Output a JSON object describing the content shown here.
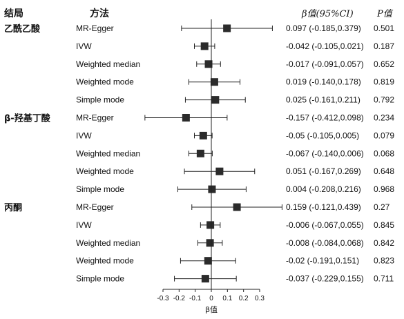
{
  "headers": {
    "outcome": "结局",
    "method": "方法",
    "beta_ci": "β值(95%CI)",
    "p": "P值"
  },
  "chart_data": {
    "type": "forest",
    "xlabel": "β值",
    "xlim": [
      -0.3,
      0.3
    ],
    "xticks": [
      "-0.3",
      "-0.2",
      "-0.1",
      "0",
      "0.1",
      "0.2",
      "0.3"
    ],
    "tick_values": [
      -0.3,
      -0.2,
      -0.1,
      0,
      0.1,
      0.2,
      0.3
    ],
    "groups": [
      {
        "outcome": "乙酰乙酸",
        "rows": [
          {
            "method": "MR-Egger",
            "beta": 0.097,
            "lower": -0.185,
            "upper": 0.379,
            "ci_text": "0.097  (-0.185,0.379)",
            "p": "0.501"
          },
          {
            "method": "IVW",
            "beta": -0.042,
            "lower": -0.105,
            "upper": 0.021,
            "ci_text": "-0.042  (-0.105,0.021)",
            "p": "0.187"
          },
          {
            "method": "Weighted median",
            "beta": -0.017,
            "lower": -0.091,
            "upper": 0.057,
            "ci_text": "-0.017  (-0.091,0.057)",
            "p": "0.652"
          },
          {
            "method": "Weighted mode",
            "beta": 0.019,
            "lower": -0.14,
            "upper": 0.178,
            "ci_text": "0.019  (-0.140,0.178)",
            "p": "0.819"
          },
          {
            "method": "Simple mode",
            "beta": 0.025,
            "lower": -0.161,
            "upper": 0.211,
            "ci_text": "0.025  (-0.161,0.211)",
            "p": "0.792"
          }
        ]
      },
      {
        "outcome": "β-羟基丁酸",
        "rows": [
          {
            "method": "MR-Egger",
            "beta": -0.157,
            "lower": -0.412,
            "upper": 0.098,
            "ci_text": "-0.157  (-0.412,0.098)",
            "p": "0.234"
          },
          {
            "method": "IVW",
            "beta": -0.05,
            "lower": -0.105,
            "upper": 0.005,
            "ci_text": "-0.05  (-0.105,0.005)",
            "p": "0.079"
          },
          {
            "method": "Weighted median",
            "beta": -0.067,
            "lower": -0.14,
            "upper": 0.006,
            "ci_text": "-0.067  (-0.140,0.006)",
            "p": "0.068"
          },
          {
            "method": "Weighted mode",
            "beta": 0.051,
            "lower": -0.167,
            "upper": 0.269,
            "ci_text": "0.051  (-0.167,0.269)",
            "p": "0.648"
          },
          {
            "method": "Simple mode",
            "beta": 0.004,
            "lower": -0.208,
            "upper": 0.216,
            "ci_text": "0.004  (-0.208,0.216)",
            "p": "0.968"
          }
        ]
      },
      {
        "outcome": "丙酮",
        "rows": [
          {
            "method": "MR-Egger",
            "beta": 0.159,
            "lower": -0.121,
            "upper": 0.439,
            "ci_text": "0.159  (-0.121,0.439)",
            "p": "0.27"
          },
          {
            "method": "IVW",
            "beta": -0.006,
            "lower": -0.067,
            "upper": 0.055,
            "ci_text": "-0.006  (-0.067,0.055)",
            "p": "0.845"
          },
          {
            "method": "Weighted median",
            "beta": -0.008,
            "lower": -0.084,
            "upper": 0.068,
            "ci_text": "-0.008  (-0.084,0.068)",
            "p": "0.842"
          },
          {
            "method": "Weighted mode",
            "beta": -0.02,
            "lower": -0.191,
            "upper": 0.151,
            "ci_text": "-0.02  (-0.191,0.151)",
            "p": "0.823"
          },
          {
            "method": "Simple mode",
            "beta": -0.037,
            "lower": -0.229,
            "upper": 0.155,
            "ci_text": "-0.037  (-0.229,0.155)",
            "p": "0.711"
          }
        ]
      }
    ]
  }
}
